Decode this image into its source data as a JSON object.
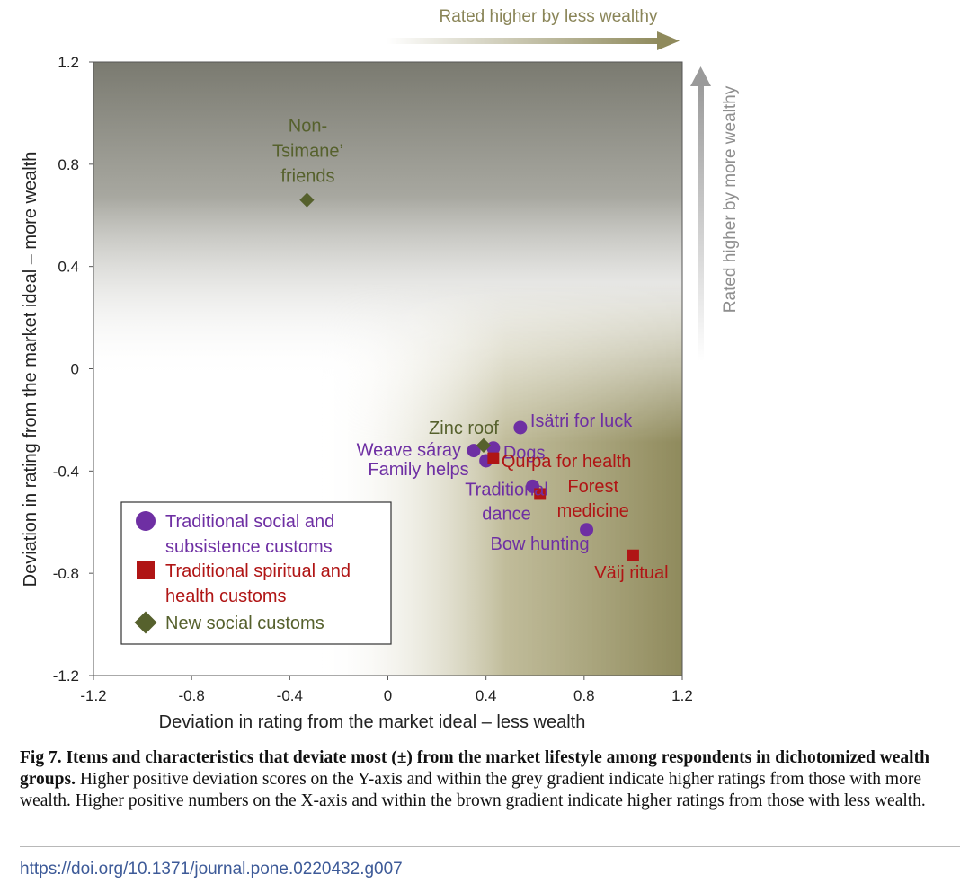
{
  "figure": {
    "top_annotation": "Rated higher by less wealthy",
    "side_annotation": "Rated higher by more wealthy"
  },
  "chart_data": {
    "type": "scatter",
    "xlabel": "Deviation in rating from the market ideal – less wealth",
    "ylabel": "Deviation in rating from the market ideal – more wealth",
    "xlim": [
      -1.2,
      1.2
    ],
    "ylim": [
      -1.2,
      1.2
    ],
    "xticks": [
      "-1.2",
      "-0.8",
      "-0.4",
      "0",
      "0.4",
      "0.8",
      "1.2"
    ],
    "yticks": [
      "1.2",
      "0.8",
      "0.4",
      "0",
      "-0.4",
      "-0.8",
      "-1.2"
    ],
    "grid": false,
    "legend_position": "bottom-left",
    "background_gradients": {
      "grey": "#7a7a70",
      "brown": "#8f8a5c"
    },
    "series": [
      {
        "name": "Traditional social and subsistence customs",
        "legend_lines": [
          "Traditional social and",
          "subsistence customs"
        ],
        "marker": "circle",
        "color": "#6e2fa3",
        "points": [
          {
            "label": "Isätri for luck",
            "x": 0.54,
            "y": -0.23
          },
          {
            "label": "Dogs",
            "x": 0.43,
            "y": -0.31
          },
          {
            "label": "Weave sáray",
            "x": 0.35,
            "y": -0.32
          },
          {
            "label": "Family helps",
            "x": 0.4,
            "y": -0.36
          },
          {
            "label": "Traditional dance",
            "x": 0.59,
            "y": -0.46
          },
          {
            "label": "Bow hunting",
            "x": 0.81,
            "y": -0.63
          }
        ]
      },
      {
        "name": "Traditional spiritual and health customs",
        "legend_lines": [
          "Traditional spiritual and",
          "health customs"
        ],
        "marker": "square",
        "color": "#b01515",
        "points": [
          {
            "label": "Qurpa for health",
            "x": 0.43,
            "y": -0.35
          },
          {
            "label": "Forest medicine",
            "x": 0.62,
            "y": -0.49
          },
          {
            "label": "Väij ritual",
            "x": 1.0,
            "y": -0.73
          }
        ]
      },
      {
        "name": "New social customs",
        "legend_lines": [
          "New social customs"
        ],
        "marker": "diamond",
        "color": "#56612d",
        "points": [
          {
            "label": "Non-Tsimane' friends",
            "x": -0.33,
            "y": 0.66
          },
          {
            "label": "Zinc roof",
            "x": 0.39,
            "y": -0.3
          }
        ]
      }
    ]
  },
  "caption": {
    "bold": "Fig 7. Items and characteristics that deviate most (±) from the market lifestyle among respondents in dichotomized wealth groups.",
    "text": " Higher positive deviation scores on the Y-axis and within the grey gradient indicate higher ratings from those with more wealth. Higher positive numbers on the X-axis and within the brown gradient indicate higher ratings from those with less wealth."
  },
  "doi": "https://doi.org/10.1371/journal.pone.0220432.g007"
}
